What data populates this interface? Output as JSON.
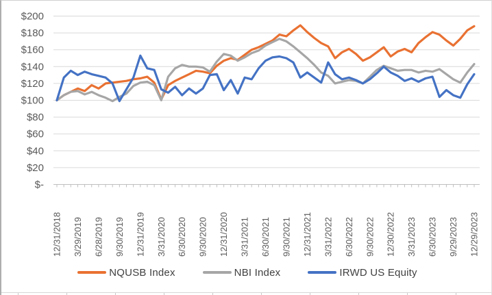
{
  "chart_data": {
    "type": "line",
    "title": "",
    "xlabel": "",
    "ylabel": "",
    "ylim": [
      0,
      200
    ],
    "y_step": 20,
    "grid": true,
    "legend_position": "bottom",
    "x_points": 61,
    "x_tick_every": 3,
    "x_tick_labels": [
      "12/31/2018",
      "3/29/2019",
      "6/28/2019",
      "9/30/2019",
      "12/31/2019",
      "3/31/2020",
      "6/30/2020",
      "9/30/2020",
      "12/31/2020",
      "3/31/2021",
      "6/30/2021",
      "9/30/2021",
      "12/31/2021",
      "3/31/2022",
      "6/30/2022",
      "9/30/2022",
      "12/30/2022",
      "3/31/2023",
      "6/30/2023",
      "9/29/2023",
      "12/29/2023"
    ],
    "y_tick_labels": [
      "$-",
      "$20",
      "$40",
      "$60",
      "$80",
      "$100",
      "$120",
      "$140",
      "$160",
      "$180",
      "$200"
    ],
    "series": [
      {
        "name": "NQUSB Index",
        "color": "#E97132",
        "values": [
          100,
          106,
          110,
          114,
          111,
          118,
          114,
          120,
          121,
          122,
          123,
          125,
          126,
          128,
          121,
          101,
          118,
          123,
          127,
          131,
          135,
          134,
          132,
          141,
          147,
          150,
          148,
          154,
          160,
          163,
          167,
          171,
          178,
          176,
          183,
          189,
          181,
          174,
          168,
          164,
          150,
          157,
          161,
          155,
          147,
          151,
          157,
          163,
          152,
          158,
          161,
          157,
          168,
          175,
          181,
          178,
          171,
          165,
          173,
          183,
          188
        ]
      },
      {
        "name": "NBI Index",
        "color": "#A6A6A6",
        "values": [
          100,
          106,
          110,
          111,
          107,
          110,
          106,
          103,
          99,
          104,
          108,
          117,
          121,
          122,
          118,
          100,
          128,
          138,
          142,
          140,
          140,
          139,
          134,
          146,
          155,
          153,
          147,
          151,
          156,
          159,
          165,
          169,
          173,
          170,
          164,
          157,
          150,
          142,
          133,
          129,
          120,
          122,
          124,
          123,
          120,
          128,
          136,
          141,
          138,
          135,
          136,
          136,
          133,
          135,
          134,
          137,
          131,
          125,
          121,
          133,
          143
        ]
      },
      {
        "name": "IRWD US Equity",
        "color": "#4472C4",
        "values": [
          100,
          127,
          135,
          130,
          134,
          131,
          129,
          127,
          120,
          99,
          113,
          127,
          153,
          138,
          136,
          113,
          109,
          116,
          106,
          114,
          108,
          114,
          130,
          131,
          112,
          124,
          108,
          127,
          125,
          138,
          147,
          151,
          152,
          150,
          145,
          127,
          133,
          127,
          121,
          145,
          131,
          125,
          127,
          124,
          120,
          125,
          132,
          140,
          133,
          129,
          123,
          126,
          122,
          126,
          128,
          104,
          112,
          106,
          103,
          119,
          131
        ]
      }
    ],
    "axis_text_color": "#595959",
    "gridline_color": "#d9d9d9",
    "axis_line_color": "#bfbfbf"
  },
  "worksheet": {
    "cell_tick_count": 10,
    "cell_tick_start_x": 24,
    "cell_tick_spacing": 71
  }
}
